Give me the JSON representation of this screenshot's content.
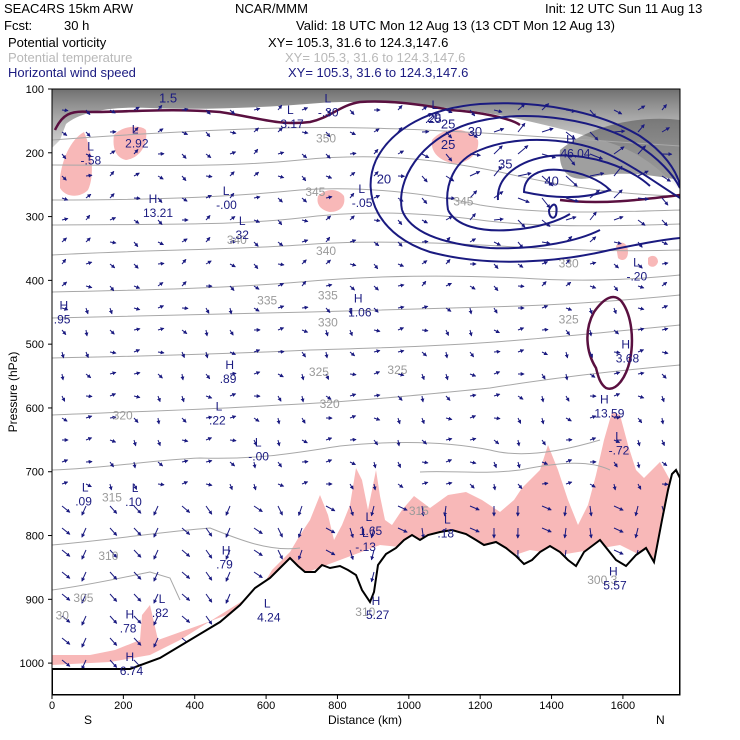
{
  "header": {
    "model": "SEAC4RS 15km ARW",
    "org": "NCAR/MMM",
    "init": "Init: 12 UTC Sun 11 Aug 13",
    "fcst_label": "Fcst:",
    "fcst_value": "30 h",
    "valid": "Valid: 18 UTC Mon 12 Aug 13 (13 CDT Mon 12 Aug 13)",
    "fields": [
      {
        "name": "Potential vorticity",
        "xy": "XY= 105.3, 31.6 to 124.3,147.6"
      },
      {
        "name": "Potential temperature",
        "xy": "XY= 105.3, 31.6 to 124.3,147.6"
      },
      {
        "name": "Horizontal wind speed",
        "xy": "XY= 105.3, 31.6 to 124.3,147.6"
      }
    ]
  },
  "colors": {
    "pv_fill": "#f8b8b8",
    "pv_contour": "#5a1040",
    "isentrope": "#a8a8a8",
    "wind_contour": "#1a1a80",
    "terrain": "#000000"
  },
  "chart_data": {
    "type": "cross-section",
    "xlabel": "Distance (km)",
    "ylabel": "Pressure (hPa)",
    "xlim": [
      0,
      1760
    ],
    "ylim": [
      1050,
      100
    ],
    "x_ticks": [
      "0",
      "200",
      "400",
      "600",
      "800",
      "1000",
      "1200",
      "1400",
      "1600"
    ],
    "y_ticks": [
      "100",
      "200",
      "300",
      "400",
      "500",
      "600",
      "700",
      "800",
      "900",
      "1000"
    ],
    "x_end_labels": {
      "left": "S",
      "right": "N"
    },
    "isentrope_labels": [
      {
        "text": "350",
        "x": 740,
        "p": 184
      },
      {
        "text": "345",
        "x": 710,
        "p": 268
      },
      {
        "text": "345",
        "x": 1125,
        "p": 283
      },
      {
        "text": "340",
        "x": 490,
        "p": 343
      },
      {
        "text": "340",
        "x": 740,
        "p": 360
      },
      {
        "text": "335",
        "x": 575,
        "p": 438
      },
      {
        "text": "335",
        "x": 745,
        "p": 430
      },
      {
        "text": "330",
        "x": 745,
        "p": 472
      },
      {
        "text": "330",
        "x": 1420,
        "p": 380
      },
      {
        "text": "325",
        "x": 720,
        "p": 550
      },
      {
        "text": "325",
        "x": 940,
        "p": 547
      },
      {
        "text": "325",
        "x": 1420,
        "p": 468
      },
      {
        "text": "320",
        "x": 170,
        "p": 618
      },
      {
        "text": "320",
        "x": 750,
        "p": 600
      },
      {
        "text": "315",
        "x": 140,
        "p": 747
      },
      {
        "text": "315",
        "x": 1000,
        "p": 768
      },
      {
        "text": "310",
        "x": 130,
        "p": 838
      },
      {
        "text": "305",
        "x": 60,
        "p": 904
      },
      {
        "text": "30",
        "x": 10,
        "p": 932
      },
      {
        "text": "310",
        "x": 850,
        "p": 926
      },
      {
        "text": "300.3",
        "x": 1500,
        "p": 876
      }
    ],
    "wind_labels": [
      {
        "text": "20",
        "x": 1050,
        "p": 152
      },
      {
        "text": "25",
        "x": 1090,
        "p": 162
      },
      {
        "text": "25",
        "x": 1090,
        "p": 194
      },
      {
        "text": "30",
        "x": 1165,
        "p": 174
      },
      {
        "text": "35",
        "x": 1250,
        "p": 225
      },
      {
        "text": "40",
        "x": 1380,
        "p": 251
      },
      {
        "text": "20",
        "x": 910,
        "p": 248
      },
      {
        "text": "1.5",
        "x": 300,
        "p": 121
      }
    ],
    "extrema": [
      {
        "type": "L",
        "value": "-.58",
        "x": 80,
        "p": 218
      },
      {
        "type": "L",
        "value": "2.92",
        "x": 205,
        "p": 192
      },
      {
        "type": "H",
        "value": "13.21",
        "x": 255,
        "p": 301
      },
      {
        "type": "L",
        "value": "-.00",
        "x": 460,
        "p": 288
      },
      {
        "type": "L",
        "value": ".32",
        "x": 505,
        "p": 335
      },
      {
        "type": "L",
        "value": "3.17",
        "x": 640,
        "p": 161
      },
      {
        "type": "L",
        "value": "-.30",
        "x": 745,
        "p": 143
      },
      {
        "type": "L",
        "value": "-.05",
        "x": 840,
        "p": 285
      },
      {
        "type": "L",
        "value": ".25",
        "x": 1045,
        "p": 153
      },
      {
        "type": "H",
        "value": "46.04",
        "x": 1425,
        "p": 207
      },
      {
        "type": "L",
        "value": "-.20",
        "x": 1610,
        "p": 400
      },
      {
        "type": "H",
        "value": ".95",
        "x": 5,
        "p": 468
      },
      {
        "type": "H",
        "value": "1.06",
        "x": 830,
        "p": 457
      },
      {
        "type": "H",
        "value": "3.68",
        "x": 1580,
        "p": 529
      },
      {
        "type": "H",
        "value": ".89",
        "x": 470,
        "p": 561
      },
      {
        "type": "H",
        "value": "13.59",
        "x": 1520,
        "p": 615
      },
      {
        "type": "L",
        "value": ".22",
        "x": 440,
        "p": 626
      },
      {
        "type": "L",
        "value": "-.72",
        "x": 1560,
        "p": 673
      },
      {
        "type": "L",
        "value": "-.00",
        "x": 550,
        "p": 682
      },
      {
        "type": "L",
        "value": ".09",
        "x": 65,
        "p": 753
      },
      {
        "type": "L",
        "value": ".10",
        "x": 205,
        "p": 754
      },
      {
        "type": "L",
        "value": "1.65",
        "x": 860,
        "p": 799
      },
      {
        "type": "L",
        "value": "-.13",
        "x": 850,
        "p": 824
      },
      {
        "type": "L",
        "value": ".18",
        "x": 1080,
        "p": 803
      },
      {
        "type": "H",
        "value": ".79",
        "x": 460,
        "p": 852
      },
      {
        "type": "L",
        "value": ".82",
        "x": 280,
        "p": 928
      },
      {
        "type": "H",
        "value": ".78",
        "x": 190,
        "p": 952
      },
      {
        "type": "L",
        "value": "4.24",
        "x": 575,
        "p": 935
      },
      {
        "type": "H",
        "value": "5.27",
        "x": 880,
        "p": 931
      },
      {
        "type": "H",
        "value": "5.57",
        "x": 1545,
        "p": 885
      },
      {
        "type": "H",
        "value": "6.74",
        "x": 190,
        "p": 1019
      }
    ]
  }
}
